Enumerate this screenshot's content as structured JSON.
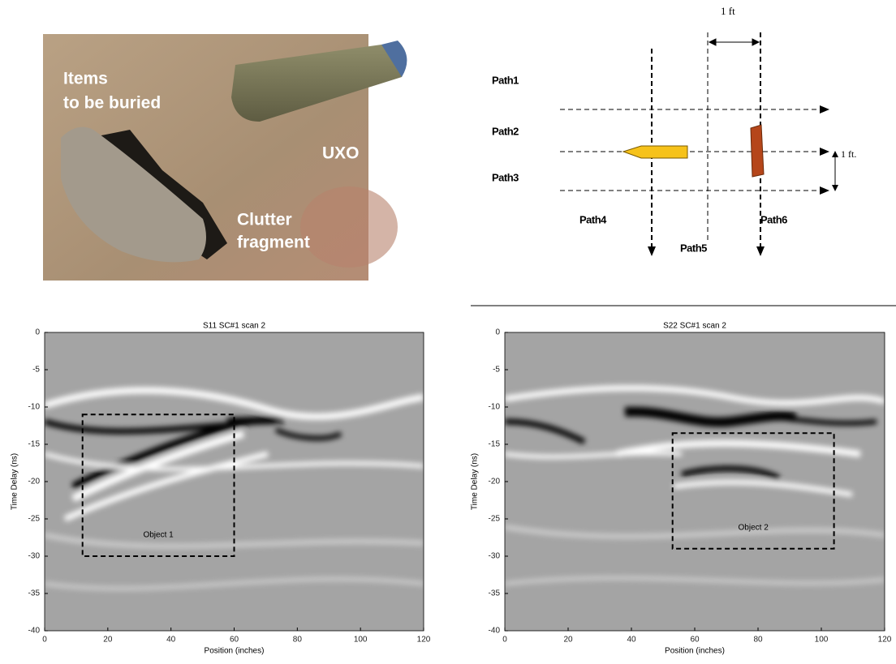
{
  "photo": {
    "caption_lines": [
      "Items",
      "to be buried"
    ],
    "uxo_label": "UXO",
    "clutter_lines": [
      "Clutter",
      "fragment"
    ]
  },
  "diagram": {
    "spacing_label": "1 ft",
    "offset_label": "1 ft.",
    "paths": [
      "Path1",
      "Path2",
      "Path3",
      "Path4",
      "Path5",
      "Path6"
    ]
  },
  "panels": [
    {
      "title": "S11 SC#1 scan 2",
      "xlabel": "Position (inches)",
      "ylabel": "Time Delay (ns)",
      "xlim": [
        0,
        120
      ],
      "ylim": [
        -40,
        0
      ],
      "xticks": [
        0,
        20,
        40,
        60,
        80,
        100,
        120
      ],
      "yticks": [
        0,
        -5,
        -10,
        -15,
        -20,
        -25,
        -30,
        -35,
        -40
      ],
      "box": {
        "label": "Object 1",
        "x": [
          12,
          60
        ],
        "y": [
          -30,
          -11
        ]
      }
    },
    {
      "title": "S22 SC#1 scan 2",
      "xlabel": "Position (inches)",
      "ylabel": "Time Delay (ns)",
      "xlim": [
        0,
        120
      ],
      "ylim": [
        -40,
        0
      ],
      "xticks": [
        0,
        20,
        40,
        60,
        80,
        100,
        120
      ],
      "yticks": [
        0,
        -5,
        -10,
        -15,
        -20,
        -25,
        -30,
        -35,
        -40
      ],
      "box": {
        "label": "Object 2",
        "x": [
          53,
          104
        ],
        "y": [
          -29,
          -13.5
        ]
      }
    }
  ]
}
